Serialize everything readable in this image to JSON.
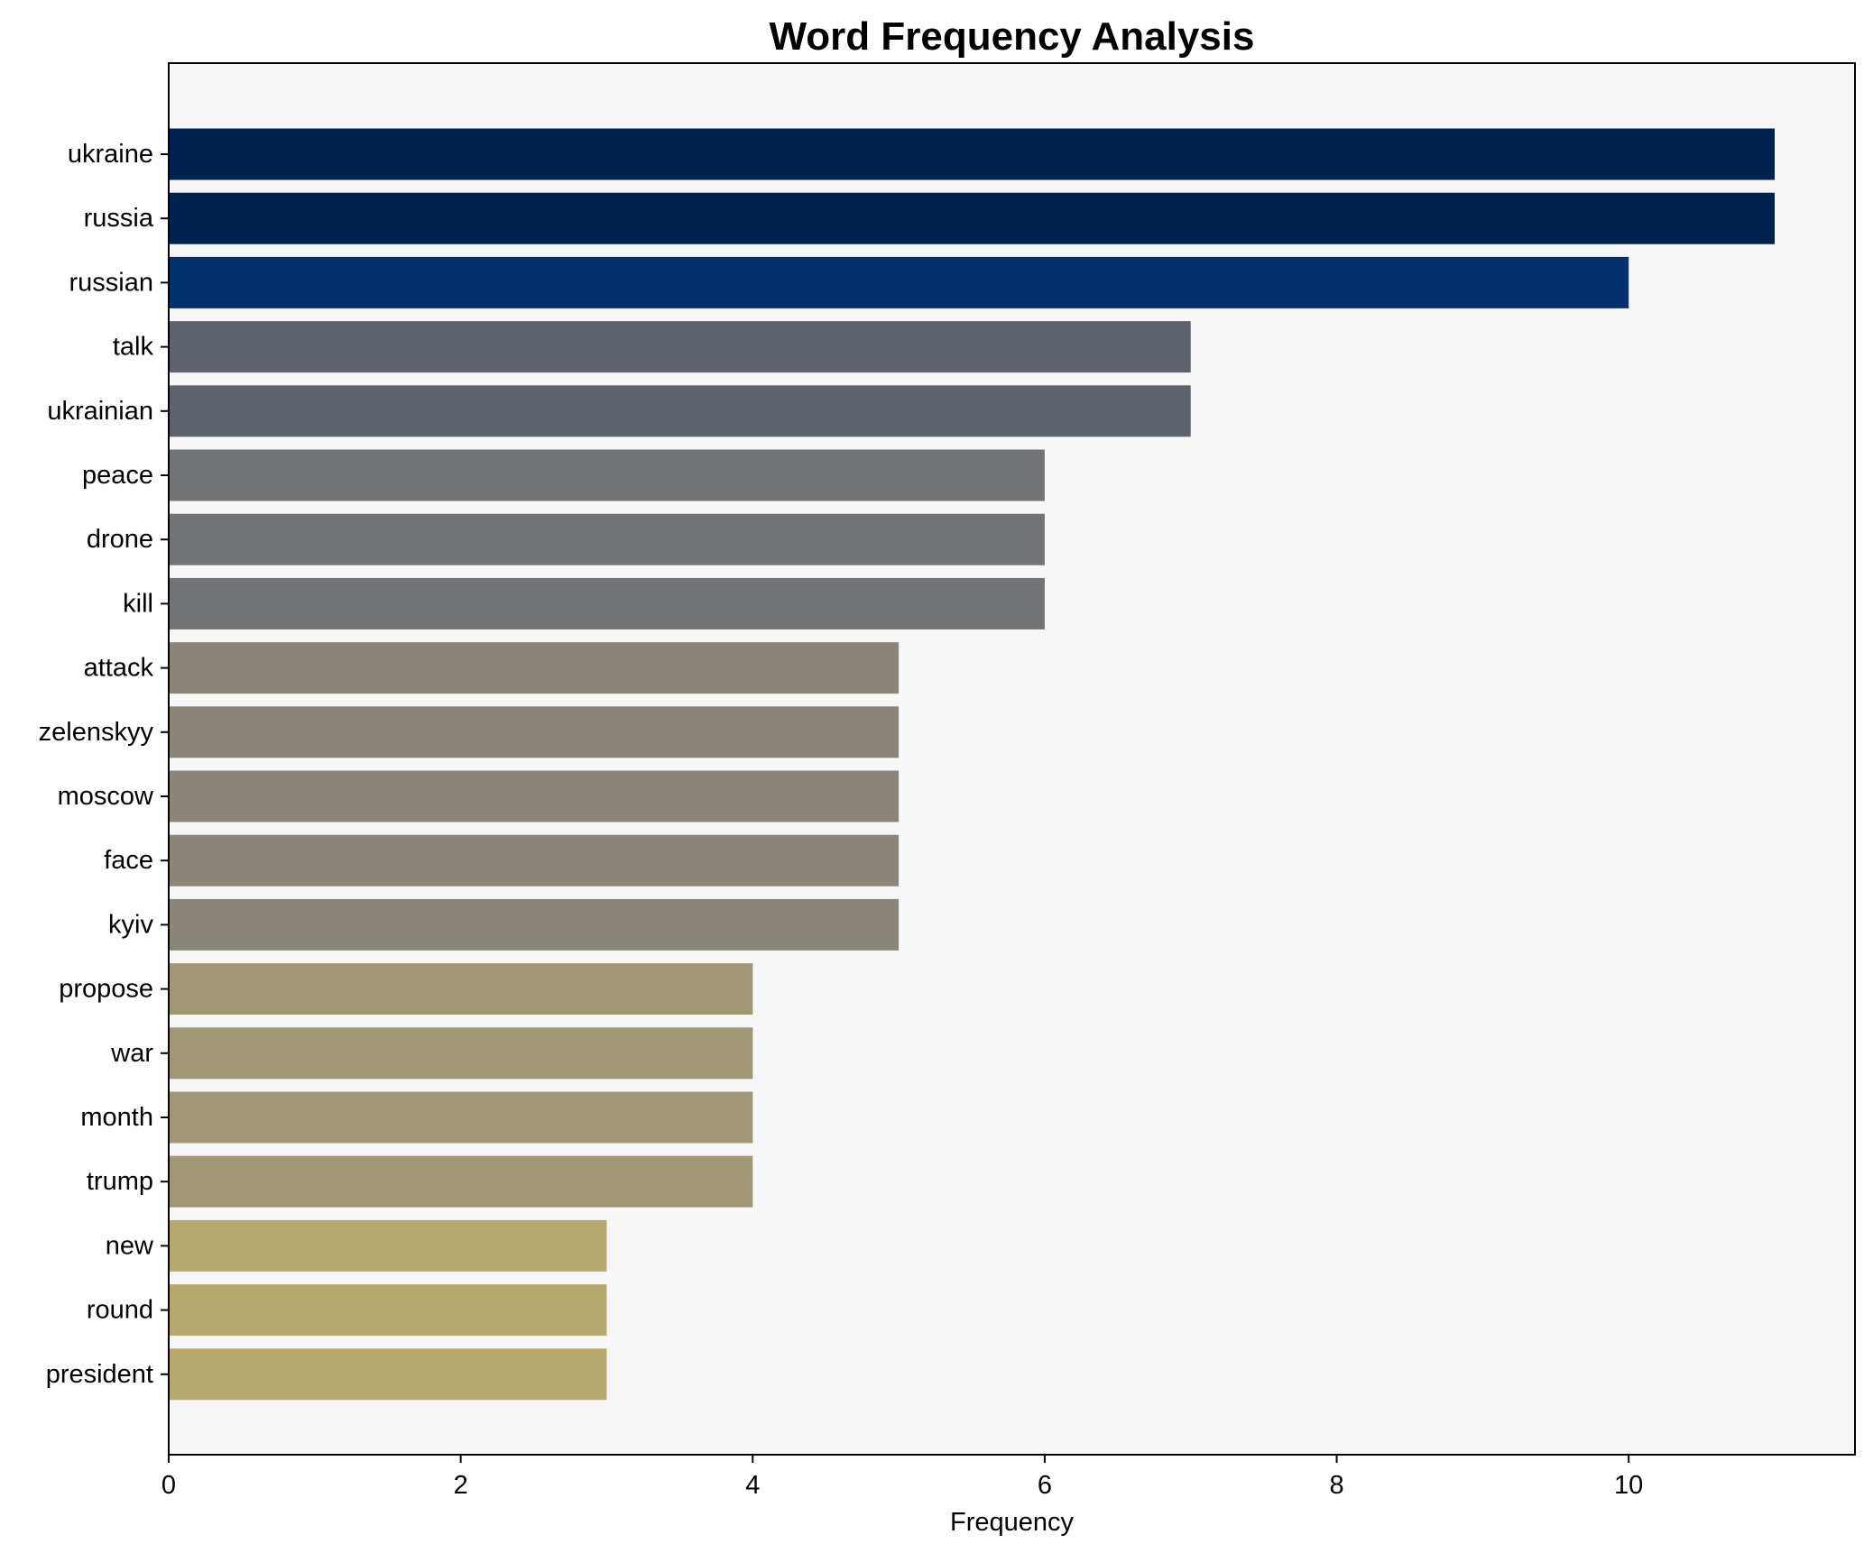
{
  "chart_data": {
    "type": "bar",
    "orientation": "horizontal",
    "title": "Word Frequency Analysis",
    "xlabel": "Frequency",
    "ylabel": "",
    "xlim": [
      0,
      11.55
    ],
    "x_ticks": [
      0,
      2,
      4,
      6,
      8,
      10
    ],
    "grid": false,
    "legend": "none",
    "plot_background": "#f7f7f7",
    "categories": [
      "ukraine",
      "russia",
      "russian",
      "talk",
      "ukrainian",
      "peace",
      "drone",
      "kill",
      "attack",
      "zelenskyy",
      "moscow",
      "face",
      "kyiv",
      "propose",
      "war",
      "month",
      "trump",
      "new",
      "round",
      "president"
    ],
    "values": [
      11,
      11,
      10,
      7,
      7,
      6,
      6,
      6,
      5,
      5,
      5,
      5,
      5,
      4,
      4,
      4,
      4,
      3,
      3,
      3
    ],
    "colors": [
      "#00224e",
      "#00224e",
      "#01306f",
      "#5f636e",
      "#5f636e",
      "#727374",
      "#727374",
      "#727374",
      "#8a8779",
      "#8a8779",
      "#8a8779",
      "#8a8779",
      "#8a8779",
      "#a09775",
      "#a09775",
      "#a09775",
      "#a09775",
      "#b7a86e",
      "#b7a86e",
      "#b7a86e"
    ]
  }
}
